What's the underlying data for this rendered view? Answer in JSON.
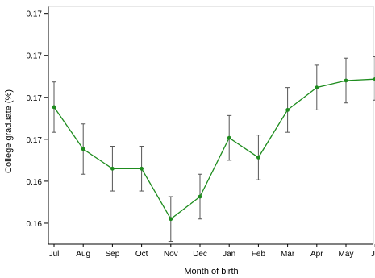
{
  "chart_data": {
    "type": "line",
    "title": "",
    "xlabel": "Month of birth",
    "ylabel": "College graduate (%)",
    "categories": [
      "Jul",
      "Aug",
      "Sep",
      "Oct",
      "Nov",
      "Dec",
      "Jan",
      "Feb",
      "Mar",
      "Apr",
      "May",
      "Ju"
    ],
    "ylim": [
      0.1585,
      0.1755
    ],
    "y_ticks": [
      0.16,
      0.163,
      0.166,
      0.169,
      0.172,
      0.175
    ],
    "y_tick_labels": [
      "0.16",
      "0.16",
      "0.17",
      "0.17",
      "0.17",
      "0.17"
    ],
    "grid": false,
    "series": [
      {
        "values": [
          0.1683,
          0.1653,
          0.1639,
          0.1639,
          0.1603,
          0.1619,
          0.1661,
          0.1647,
          0.1681,
          0.1697,
          0.1702,
          0.1703
        ],
        "err_low": [
          0.1665,
          0.1635,
          0.1623,
          0.1623,
          0.1587,
          0.1603,
          0.1645,
          0.1631,
          0.1665,
          0.1681,
          0.1686,
          0.1688
        ],
        "err_high": [
          0.1701,
          0.1671,
          0.1655,
          0.1655,
          0.1619,
          0.1635,
          0.1677,
          0.1663,
          0.1697,
          0.1713,
          0.1718,
          0.1719
        ],
        "color": "#1e8c1e",
        "errorbar_color": "#555555"
      }
    ]
  }
}
